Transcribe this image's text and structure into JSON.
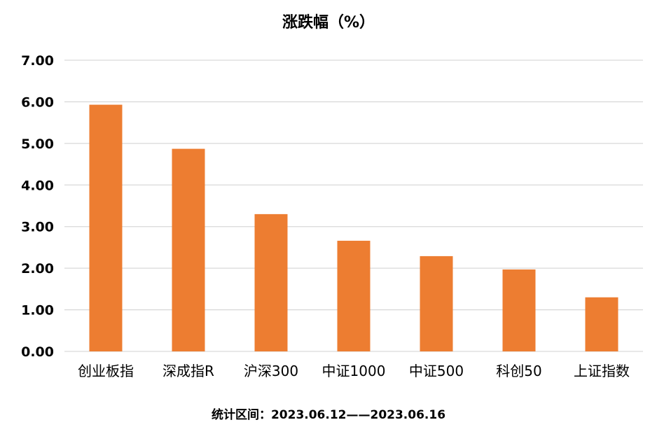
{
  "chart_data": {
    "type": "bar",
    "title": "涨跌幅（%）",
    "categories": [
      "创业板指",
      "深成指R",
      "沪深300",
      "中证1000",
      "中证500",
      "科创50",
      "上证指数"
    ],
    "series": [
      {
        "values": [
          5.93,
          4.87,
          3.3,
          2.66,
          2.29,
          1.97,
          1.3
        ]
      }
    ],
    "ylim": [
      0,
      7
    ],
    "yticks": [
      "0.00",
      "1.00",
      "2.00",
      "3.00",
      "4.00",
      "5.00",
      "6.00",
      "7.00"
    ],
    "grid": true,
    "legend": "none",
    "bar_color": "#ED7D31",
    "grid_color": "#D9D9D9",
    "footer": "统计区间：2023.06.12——2023.06.16"
  }
}
